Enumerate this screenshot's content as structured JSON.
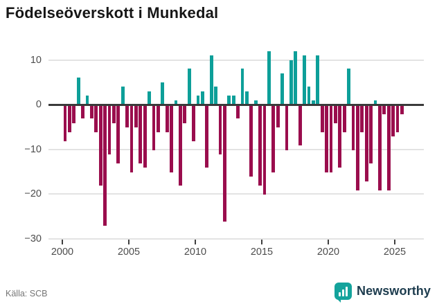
{
  "title": "Födelseöverskott i Munkedal",
  "footer": {
    "source": "Källa: SCB",
    "brand": "Newsworthy"
  },
  "colors": {
    "positive": "#0d9f99",
    "negative": "#9a0d4d",
    "zero_axis": "#3a3a3a",
    "grid": "#e3e3e3",
    "tick": "#3f3f3f",
    "tick_label": "#4d4d4d",
    "title_text": "#161616",
    "source_text": "#757575",
    "brand_text": "#1d3c4e",
    "brand_icon": "#14a39c"
  },
  "chart_data": {
    "type": "bar",
    "title": "Födelseöverskott i Munkedal",
    "xlabel": "",
    "ylabel": "",
    "legend": "none",
    "grid": "horizontal",
    "x_tick_labels": [
      "2000",
      "2005",
      "2010",
      "2015",
      "2020",
      "2025"
    ],
    "x_tick_years": [
      2000,
      2005,
      2010,
      2015,
      2020,
      2025
    ],
    "y_tick_labels": [
      "10",
      "0",
      "−10",
      "−20",
      "−30"
    ],
    "y_tick_values": [
      10,
      0,
      -10,
      -20,
      -30
    ],
    "ylim": [
      -30,
      13
    ],
    "x_range_years": [
      1999,
      2027
    ],
    "start_year": 2000,
    "bars_per_year": 3,
    "series": [
      {
        "name": "Födelseöverskott",
        "values": [
          -8,
          -6,
          -4,
          6,
          -3,
          2,
          -3,
          -6,
          -18,
          -27,
          -11,
          -4,
          -13,
          4,
          -5,
          -15,
          -5,
          -13,
          -14,
          3,
          -10,
          -6,
          5,
          -6,
          -15,
          1,
          -18,
          -4,
          8,
          -8,
          2,
          3,
          -14,
          11,
          4,
          -11,
          -26,
          2,
          2,
          -3,
          8,
          3,
          -16,
          1,
          -18,
          -20,
          12,
          -15,
          -5,
          7,
          -10,
          10,
          12,
          -9,
          11,
          4,
          1,
          11,
          -6,
          -15,
          -15,
          -4,
          -14,
          -6,
          8,
          -10,
          -19,
          -6,
          -17,
          -13,
          1,
          -19,
          -2,
          -19,
          -7,
          -6,
          -2
        ]
      }
    ]
  }
}
